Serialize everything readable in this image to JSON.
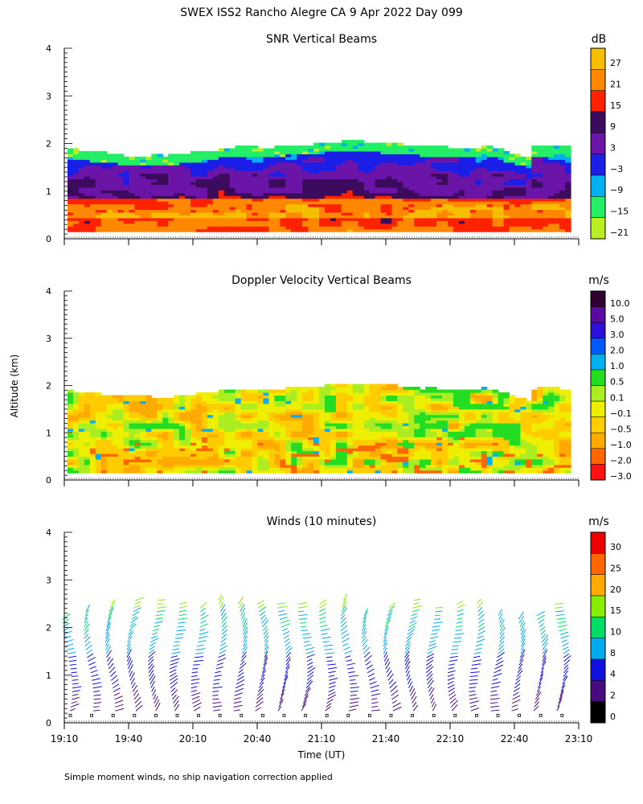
{
  "figure": {
    "title": "SWEX ISS2 Rancho Alegre CA   9 Apr 2022 Day 099",
    "footnote": "Simple moment winds, no ship navigation correction applied",
    "ylabel": "Altitude (km)",
    "xlabel": "Time (UT)",
    "x_ticks": [
      "19:10",
      "19:40",
      "20:10",
      "20:40",
      "21:10",
      "21:40",
      "22:10",
      "22:40",
      "23:10"
    ]
  },
  "chart_data": [
    {
      "type": "heatmap",
      "title": "SNR Vertical Beams",
      "ylabel": "Altitude (km)",
      "ylim": [
        0,
        4
      ],
      "y_ticks": [
        "0",
        "1",
        "2",
        "3",
        "4"
      ],
      "xlim": [
        "19:10",
        "23:10"
      ],
      "colorbar": {
        "unit": "dB",
        "labels": [
          "27",
          "21",
          "15",
          "9",
          "3",
          "−3",
          "−9",
          "−15",
          "−21"
        ],
        "colors": [
          "#f7bd00",
          "#ff8800",
          "#ff2200",
          "#3d0b5e",
          "#6a14a8",
          "#1a1ee6",
          "#00b0f0",
          "#22ee66",
          "#b8ee22"
        ]
      }
    },
    {
      "type": "heatmap",
      "title": "Doppler Velocity Vertical Beams",
      "ylabel": "Altitude (km)",
      "ylim": [
        0,
        4
      ],
      "y_ticks": [
        "0",
        "1",
        "2",
        "3",
        "4"
      ],
      "xlim": [
        "19:10",
        "23:10"
      ],
      "colorbar": {
        "unit": "m/s",
        "labels": [
          "10.0",
          "5.0",
          "3.0",
          "2.0",
          "1.0",
          "0.5",
          "0.1",
          "−0.1",
          "−0.5",
          "−1.0",
          "−2.0",
          "−3.0"
        ],
        "colors": [
          "#300030",
          "#5a0aa0",
          "#2a10d8",
          "#0058ff",
          "#00b0f0",
          "#22dd22",
          "#aaee22",
          "#eeee00",
          "#ffcc00",
          "#ffaa00",
          "#ff6600",
          "#ff1111"
        ]
      }
    },
    {
      "type": "scatter",
      "title": "Winds (10 minutes)",
      "ylabel": "Altitude (km)",
      "ylim": [
        0,
        4
      ],
      "y_ticks": [
        "0",
        "1",
        "2",
        "3",
        "4"
      ],
      "xlim": [
        "19:10",
        "23:10"
      ],
      "columns": 24,
      "colorbar": {
        "unit": "m/s",
        "labels": [
          "30",
          "25",
          "20",
          "15",
          "10",
          "8",
          "4",
          "2",
          "0"
        ],
        "colors": [
          "#ee0000",
          "#ff6600",
          "#ffaa00",
          "#88ee00",
          "#00dd66",
          "#00aaee",
          "#1010e0",
          "#4a0a80",
          "#000000"
        ]
      }
    }
  ]
}
